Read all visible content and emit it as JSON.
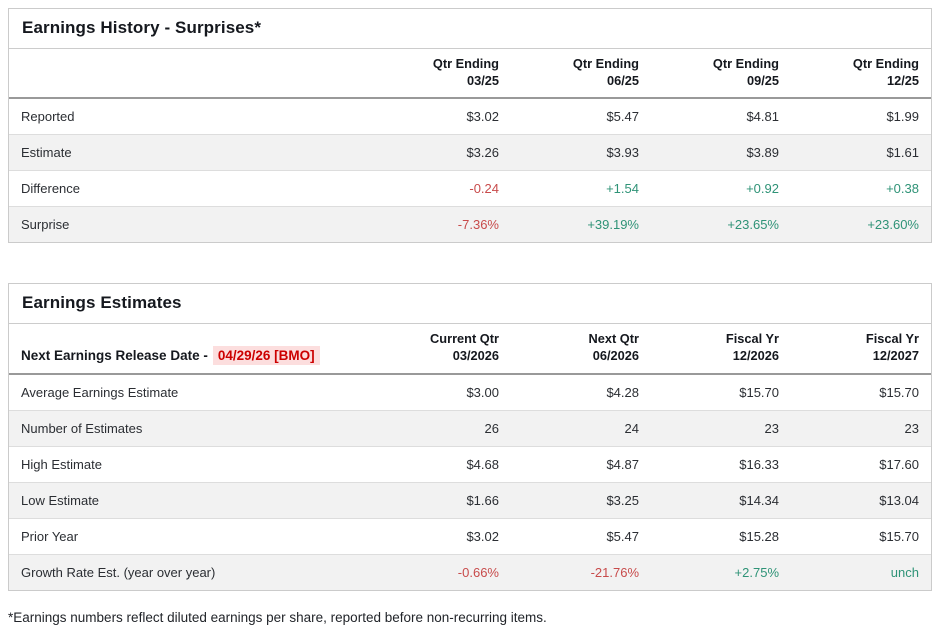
{
  "colors": {
    "positive": "#2f9377",
    "negative": "#c84b4b",
    "date_highlight_bg": "#fcdede",
    "date_highlight_text": "#cc0000"
  },
  "earnings_history": {
    "title": "Earnings History - Surprises*",
    "columns": [
      {
        "line1": "Qtr Ending",
        "line2": "03/25"
      },
      {
        "line1": "Qtr Ending",
        "line2": "06/25"
      },
      {
        "line1": "Qtr Ending",
        "line2": "09/25"
      },
      {
        "line1": "Qtr Ending",
        "line2": "12/25"
      }
    ],
    "rows": [
      {
        "label": "Reported",
        "values": [
          "$3.02",
          "$5.47",
          "$4.81",
          "$1.99"
        ]
      },
      {
        "label": "Estimate",
        "values": [
          "$3.26",
          "$3.93",
          "$3.89",
          "$1.61"
        ]
      },
      {
        "label": "Difference",
        "values": [
          "-0.24",
          "+1.54",
          "+0.92",
          "+0.38"
        ]
      },
      {
        "label": "Surprise",
        "values": [
          "-7.36%",
          "+39.19%",
          "+23.65%",
          "+23.60%"
        ]
      }
    ]
  },
  "earnings_estimates": {
    "title": "Earnings Estimates",
    "release_date_label": "Next Earnings Release Date -",
    "release_date": "04/29/26 [BMO]",
    "columns": [
      {
        "line1": "Current Qtr",
        "line2": "03/2026"
      },
      {
        "line1": "Next Qtr",
        "line2": "06/2026"
      },
      {
        "line1": "Fiscal Yr",
        "line2": "12/2026"
      },
      {
        "line1": "Fiscal Yr",
        "line2": "12/2027"
      }
    ],
    "rows": [
      {
        "label": "Average Earnings Estimate",
        "values": [
          "$3.00",
          "$4.28",
          "$15.70",
          "$15.70"
        ]
      },
      {
        "label": "Number of Estimates",
        "values": [
          "26",
          "24",
          "23",
          "23"
        ]
      },
      {
        "label": "High Estimate",
        "values": [
          "$4.68",
          "$4.87",
          "$16.33",
          "$17.60"
        ]
      },
      {
        "label": "Low Estimate",
        "values": [
          "$1.66",
          "$3.25",
          "$14.34",
          "$13.04"
        ]
      },
      {
        "label": "Prior Year",
        "values": [
          "$3.02",
          "$5.47",
          "$15.28",
          "$15.70"
        ]
      },
      {
        "label": "Growth Rate Est. (year over year)",
        "values": [
          "-0.66%",
          "-21.76%",
          "+2.75%",
          "unch"
        ]
      }
    ]
  },
  "footnote": "*Earnings numbers reflect diluted earnings per share, reported before non-recurring items."
}
